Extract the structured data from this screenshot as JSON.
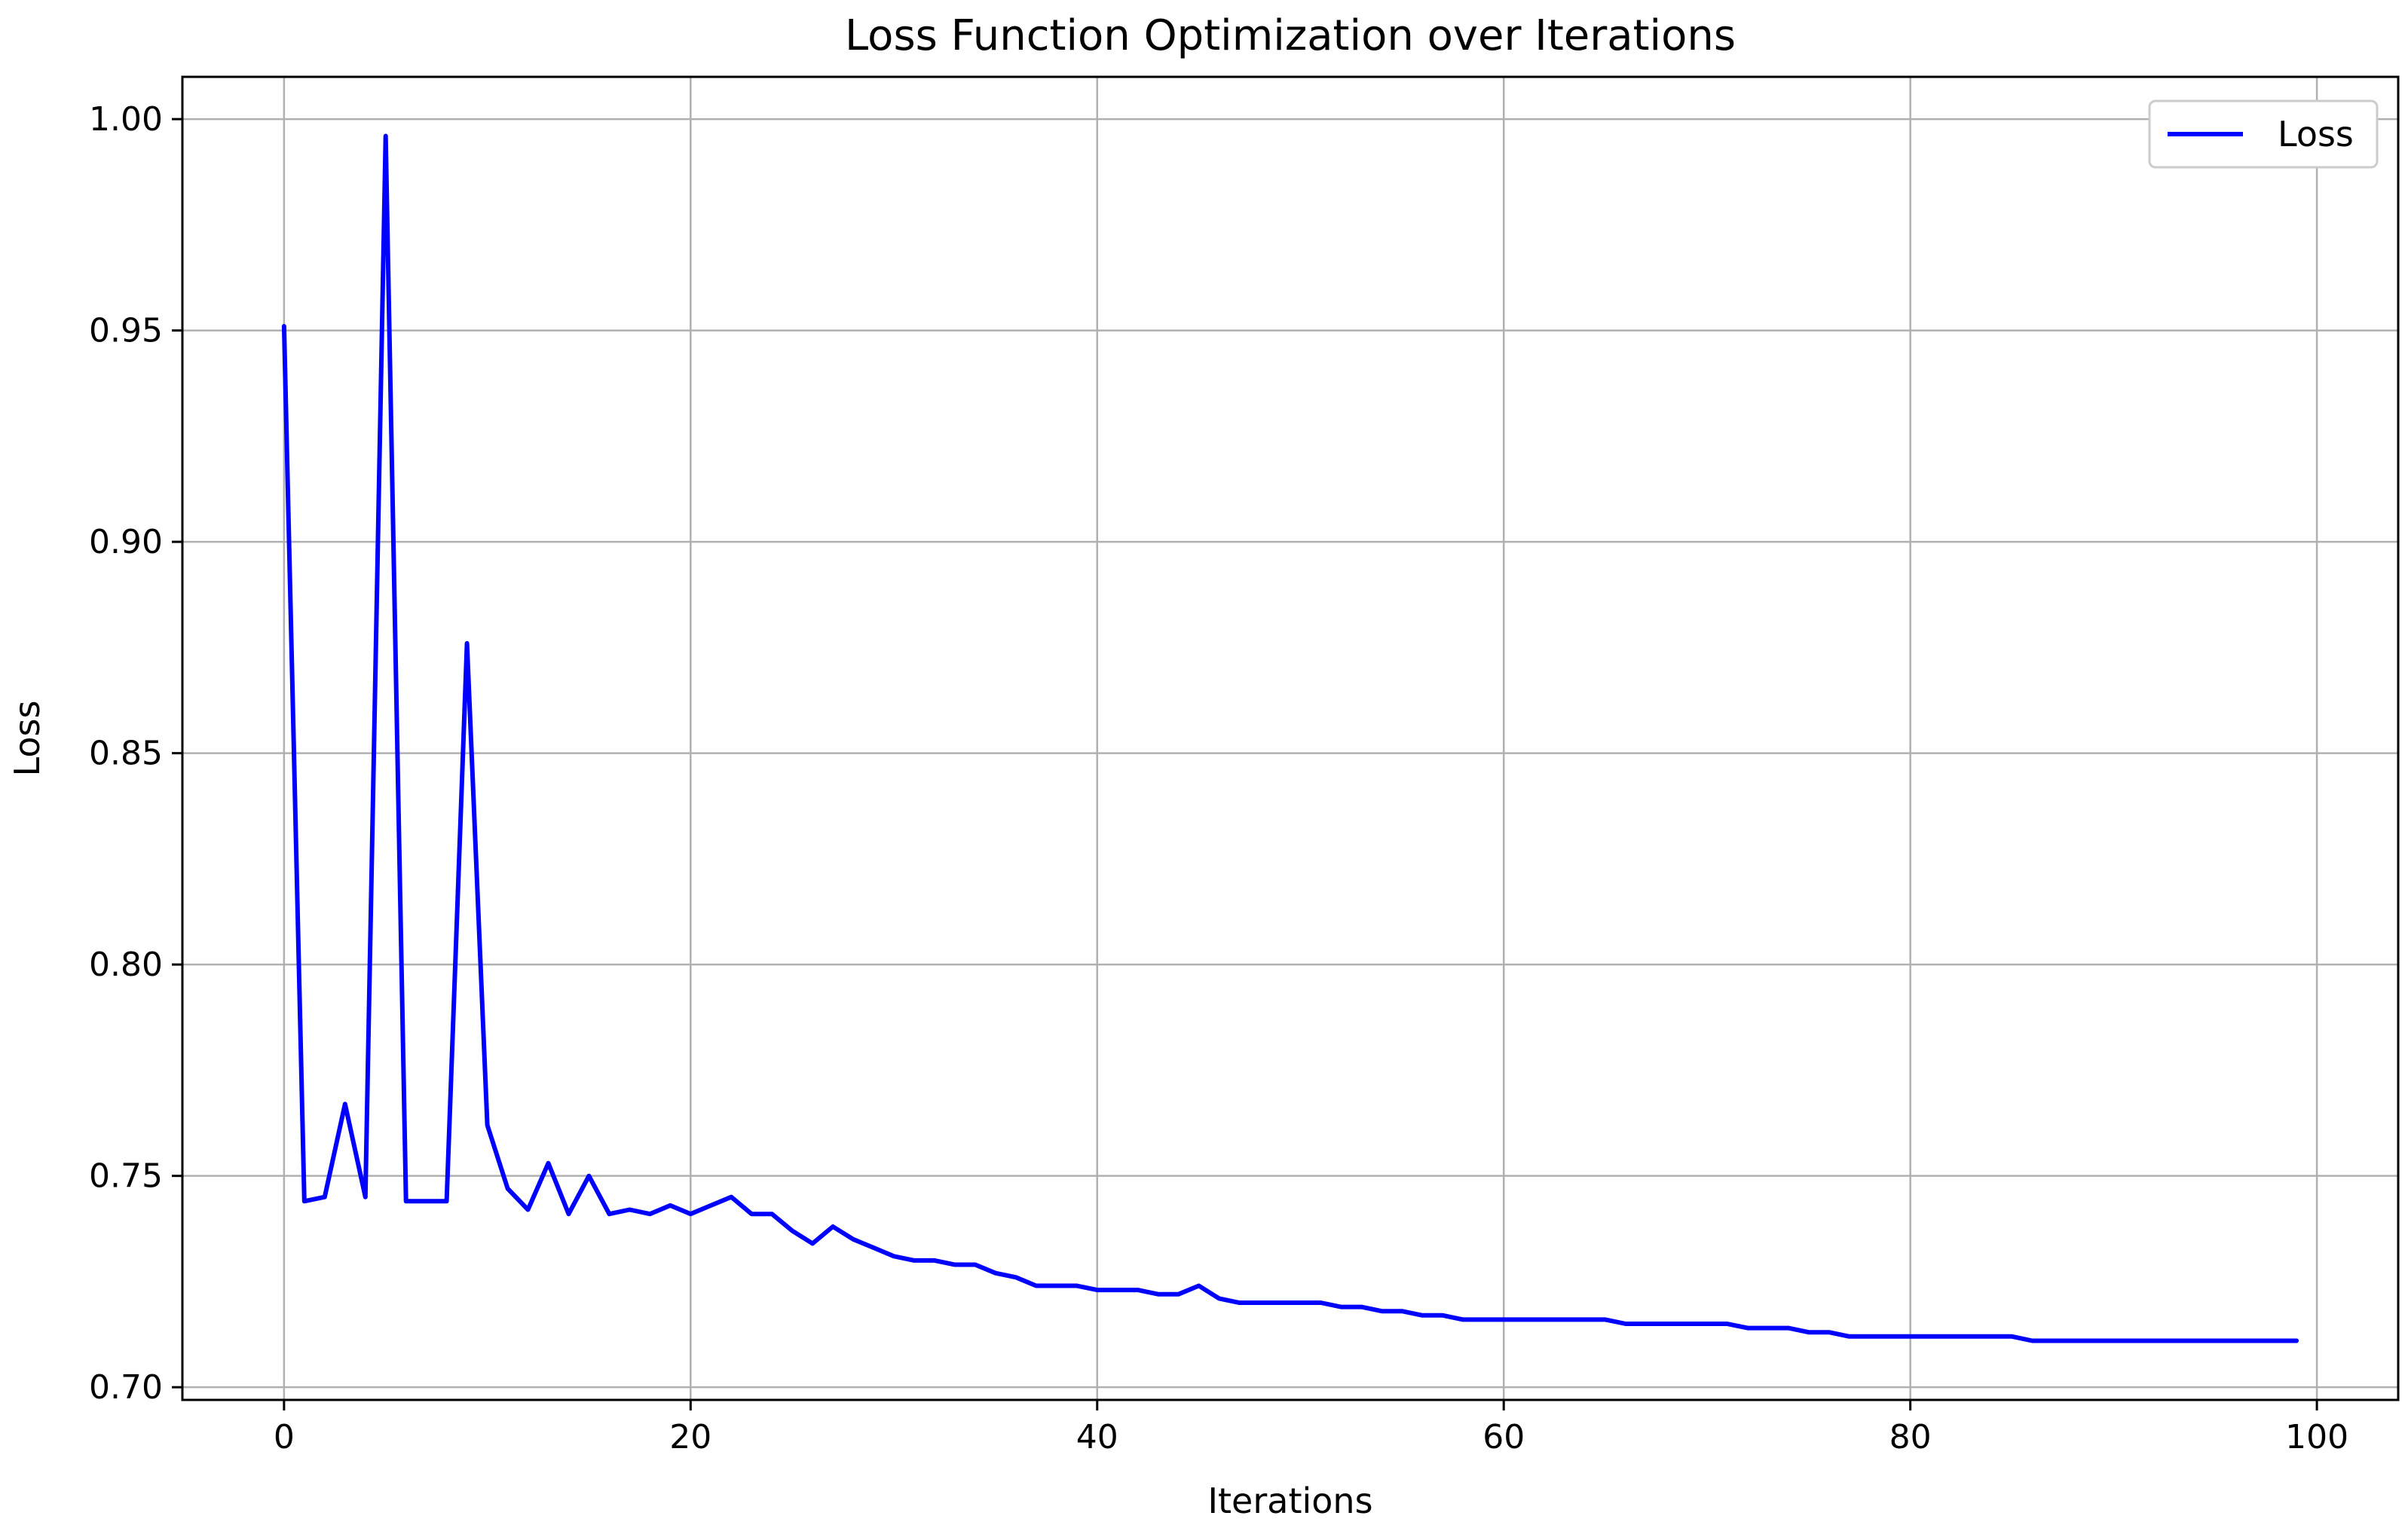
{
  "chart_data": {
    "type": "line",
    "title": "Loss Function Optimization over Iterations",
    "xlabel": "Iterations",
    "ylabel": "Loss",
    "xlim": [
      -5,
      104
    ],
    "ylim": [
      0.697,
      1.01
    ],
    "xticks": [
      0,
      20,
      40,
      60,
      80,
      100
    ],
    "yticks": [
      0.7,
      0.75,
      0.8,
      0.85,
      0.9,
      0.95,
      1.0
    ],
    "xtick_labels": [
      "0",
      "20",
      "40",
      "60",
      "80",
      "100"
    ],
    "ytick_labels": [
      "0.70",
      "0.75",
      "0.80",
      "0.85",
      "0.90",
      "0.95",
      "1.00"
    ],
    "grid": true,
    "legend_position": "top-right",
    "series": [
      {
        "name": "Loss",
        "color": "#0000ff",
        "x": [
          0,
          1,
          2,
          3,
          4,
          5,
          6,
          7,
          8,
          9,
          10,
          11,
          12,
          13,
          14,
          15,
          16,
          17,
          18,
          19,
          20,
          21,
          22,
          23,
          24,
          25,
          26,
          27,
          28,
          29,
          30,
          31,
          32,
          33,
          34,
          35,
          36,
          37,
          38,
          39,
          40,
          41,
          42,
          43,
          44,
          45,
          46,
          47,
          48,
          49,
          50,
          51,
          52,
          53,
          54,
          55,
          56,
          57,
          58,
          59,
          60,
          61,
          62,
          63,
          64,
          65,
          66,
          67,
          68,
          69,
          70,
          71,
          72,
          73,
          74,
          75,
          76,
          77,
          78,
          79,
          80,
          81,
          82,
          83,
          84,
          85,
          86,
          87,
          88,
          89,
          90,
          91,
          92,
          93,
          94,
          95,
          96,
          97,
          98,
          99
        ],
        "values": [
          0.951,
          0.744,
          0.745,
          0.767,
          0.745,
          0.996,
          0.744,
          0.744,
          0.744,
          0.876,
          0.762,
          0.747,
          0.742,
          0.753,
          0.741,
          0.75,
          0.741,
          0.742,
          0.741,
          0.743,
          0.741,
          0.743,
          0.745,
          0.741,
          0.741,
          0.737,
          0.734,
          0.738,
          0.735,
          0.733,
          0.731,
          0.73,
          0.73,
          0.729,
          0.729,
          0.727,
          0.726,
          0.724,
          0.724,
          0.724,
          0.723,
          0.723,
          0.723,
          0.722,
          0.722,
          0.724,
          0.721,
          0.72,
          0.72,
          0.72,
          0.72,
          0.72,
          0.719,
          0.719,
          0.718,
          0.718,
          0.717,
          0.717,
          0.716,
          0.716,
          0.716,
          0.716,
          0.716,
          0.716,
          0.716,
          0.716,
          0.715,
          0.715,
          0.715,
          0.715,
          0.715,
          0.715,
          0.714,
          0.714,
          0.714,
          0.713,
          0.713,
          0.712,
          0.712,
          0.712,
          0.712,
          0.712,
          0.712,
          0.712,
          0.712,
          0.712,
          0.711,
          0.711,
          0.711,
          0.711,
          0.711,
          0.711,
          0.711,
          0.711,
          0.711,
          0.711,
          0.711,
          0.711,
          0.711,
          0.711
        ]
      }
    ]
  }
}
